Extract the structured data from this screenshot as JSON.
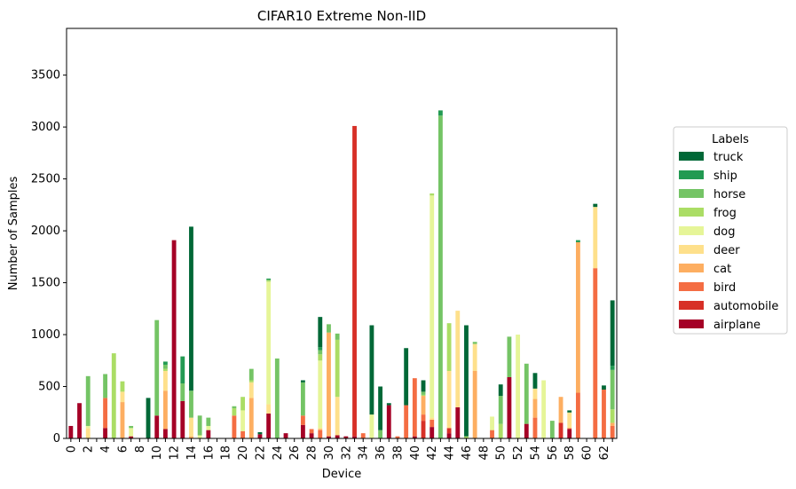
{
  "chart_data": {
    "type": "bar",
    "stacked": true,
    "title": "CIFAR10 Extreme Non-IID",
    "xlabel": "Device",
    "ylabel": "Number of Samples",
    "ylim": [
      0,
      3950
    ],
    "yticks": [
      0,
      500,
      1000,
      1500,
      2000,
      2500,
      3000,
      3500
    ],
    "xtick_step": 2,
    "grid": false,
    "legend": {
      "title": "Labels",
      "placement": "right",
      "order": [
        "truck",
        "ship",
        "horse",
        "frog",
        "dog",
        "deer",
        "cat",
        "bird",
        "automobile",
        "airplane"
      ]
    },
    "categories": [
      "0",
      "1",
      "2",
      "3",
      "4",
      "5",
      "6",
      "7",
      "8",
      "9",
      "10",
      "11",
      "12",
      "13",
      "14",
      "15",
      "16",
      "17",
      "18",
      "19",
      "20",
      "21",
      "22",
      "23",
      "24",
      "25",
      "26",
      "27",
      "28",
      "29",
      "30",
      "31",
      "32",
      "33",
      "34",
      "35",
      "36",
      "37",
      "38",
      "39",
      "40",
      "41",
      "42",
      "43",
      "44",
      "45",
      "46",
      "47",
      "48",
      "49",
      "50",
      "51",
      "52",
      "53",
      "54",
      "55",
      "56",
      "57",
      "58",
      "59",
      "60",
      "61",
      "62",
      "63"
    ],
    "series": [
      {
        "name": "airplane",
        "color": "#a50026",
        "values": [
          120,
          340,
          0,
          0,
          100,
          0,
          0,
          20,
          0,
          0,
          220,
          90,
          1910,
          360,
          0,
          0,
          80,
          0,
          0,
          0,
          0,
          0,
          40,
          240,
          0,
          50,
          0,
          130,
          50,
          0,
          20,
          30,
          20,
          20,
          0,
          0,
          0,
          320,
          0,
          0,
          20,
          0,
          110,
          0,
          50,
          300,
          0,
          0,
          0,
          0,
          0,
          590,
          0,
          140,
          0,
          0,
          0,
          0,
          90,
          0,
          0,
          0,
          0,
          0
        ]
      },
      {
        "name": "automobile",
        "color": "#d73027",
        "values": [
          0,
          0,
          0,
          0,
          0,
          0,
          0,
          0,
          0,
          0,
          0,
          0,
          0,
          0,
          0,
          0,
          0,
          0,
          0,
          0,
          0,
          0,
          0,
          0,
          0,
          0,
          0,
          0,
          0,
          0,
          0,
          0,
          0,
          2990,
          0,
          0,
          0,
          0,
          0,
          0,
          0,
          170,
          0,
          0,
          50,
          0,
          0,
          0,
          0,
          0,
          0,
          0,
          0,
          0,
          0,
          0,
          0,
          150,
          0,
          0,
          0,
          0,
          0,
          0
        ]
      },
      {
        "name": "bird",
        "color": "#f46d43",
        "values": [
          0,
          0,
          0,
          0,
          290,
          0,
          0,
          0,
          0,
          0,
          0,
          0,
          0,
          0,
          0,
          0,
          0,
          0,
          0,
          220,
          70,
          0,
          0,
          0,
          0,
          0,
          0,
          90,
          40,
          80,
          0,
          0,
          0,
          0,
          50,
          0,
          0,
          0,
          20,
          320,
          560,
          60,
          70,
          0,
          0,
          0,
          0,
          0,
          0,
          80,
          0,
          0,
          0,
          0,
          200,
          0,
          0,
          0,
          10,
          440,
          0,
          1640,
          470,
          120
        ]
      },
      {
        "name": "cat",
        "color": "#fdae61",
        "values": [
          0,
          0,
          0,
          0,
          0,
          0,
          350,
          0,
          0,
          0,
          0,
          370,
          0,
          0,
          20,
          0,
          0,
          0,
          0,
          0,
          0,
          390,
          0,
          0,
          0,
          0,
          0,
          0,
          0,
          10,
          1000,
          0,
          0,
          0,
          0,
          0,
          0,
          0,
          0,
          0,
          0,
          180,
          0,
          0,
          0,
          0,
          0,
          650,
          0,
          0,
          0,
          0,
          0,
          0,
          180,
          0,
          0,
          250,
          0,
          1450,
          0,
          0,
          0,
          30
        ]
      },
      {
        "name": "deer",
        "color": "#fee08b",
        "values": [
          0,
          0,
          100,
          0,
          0,
          0,
          100,
          0,
          0,
          0,
          0,
          190,
          0,
          0,
          180,
          0,
          0,
          0,
          0,
          0,
          0,
          150,
          0,
          90,
          0,
          0,
          0,
          0,
          0,
          10,
          0,
          370,
          0,
          0,
          0,
          0,
          0,
          0,
          0,
          0,
          0,
          0,
          20,
          0,
          550,
          930,
          0,
          260,
          0,
          0,
          0,
          0,
          0,
          0,
          100,
          0,
          0,
          0,
          150,
          0,
          0,
          590,
          0,
          0
        ]
      },
      {
        "name": "dog",
        "color": "#e6f598",
        "values": [
          0,
          0,
          20,
          0,
          0,
          0,
          0,
          80,
          0,
          0,
          0,
          0,
          0,
          0,
          0,
          30,
          40,
          0,
          0,
          0,
          200,
          0,
          0,
          1180,
          0,
          0,
          0,
          0,
          0,
          650,
          0,
          0,
          0,
          0,
          0,
          230,
          0,
          0,
          0,
          0,
          0,
          0,
          2140,
          0,
          0,
          0,
          0,
          0,
          0,
          130,
          0,
          0,
          1000,
          0,
          0,
          560,
          0,
          0,
          0,
          0,
          0,
          0,
          0,
          0
        ]
      },
      {
        "name": "frog",
        "color": "#abdd65",
        "values": [
          0,
          0,
          0,
          0,
          0,
          820,
          100,
          0,
          0,
          0,
          0,
          20,
          0,
          0,
          0,
          0,
          0,
          0,
          0,
          70,
          130,
          20,
          0,
          10,
          0,
          0,
          0,
          0,
          0,
          60,
          0,
          550,
          0,
          0,
          0,
          0,
          0,
          0,
          0,
          0,
          0,
          10,
          20,
          0,
          460,
          0,
          20,
          0,
          0,
          0,
          140,
          0,
          0,
          0,
          0,
          0,
          0,
          0,
          0,
          0,
          0,
          0,
          0,
          130
        ]
      },
      {
        "name": "horse",
        "color": "#74c465",
        "values": [
          0,
          0,
          480,
          0,
          230,
          0,
          0,
          20,
          0,
          0,
          920,
          40,
          0,
          170,
          260,
          190,
          80,
          0,
          0,
          20,
          0,
          110,
          0,
          10,
          770,
          0,
          0,
          320,
          0,
          40,
          80,
          60,
          0,
          0,
          0,
          0,
          80,
          0,
          0,
          0,
          0,
          30,
          0,
          3110,
          0,
          0,
          0,
          20,
          0,
          0,
          270,
          390,
          0,
          580,
          0,
          0,
          170,
          0,
          0,
          0,
          0,
          0,
          0,
          380
        ]
      },
      {
        "name": "ship",
        "color": "#229a52",
        "values": [
          0,
          0,
          0,
          0,
          0,
          0,
          0,
          0,
          0,
          0,
          0,
          30,
          0,
          260,
          0,
          0,
          0,
          0,
          0,
          0,
          0,
          0,
          0,
          10,
          0,
          0,
          0,
          0,
          0,
          30,
          0,
          0,
          0,
          0,
          0,
          0,
          0,
          0,
          0,
          0,
          0,
          0,
          0,
          50,
          0,
          0,
          0,
          0,
          0,
          0,
          0,
          0,
          0,
          0,
          0,
          0,
          0,
          0,
          0,
          20,
          0,
          0,
          0,
          40
        ]
      },
      {
        "name": "truck",
        "color": "#006837",
        "values": [
          0,
          0,
          0,
          0,
          0,
          0,
          0,
          0,
          0,
          390,
          0,
          0,
          0,
          0,
          1580,
          0,
          0,
          0,
          0,
          0,
          0,
          0,
          20,
          0,
          0,
          0,
          0,
          20,
          0,
          290,
          0,
          0,
          0,
          0,
          0,
          860,
          420,
          20,
          0,
          550,
          0,
          110,
          0,
          0,
          0,
          0,
          1070,
          0,
          0,
          0,
          110,
          0,
          0,
          0,
          150,
          0,
          0,
          0,
          20,
          0,
          0,
          30,
          40,
          630
        ]
      }
    ]
  }
}
